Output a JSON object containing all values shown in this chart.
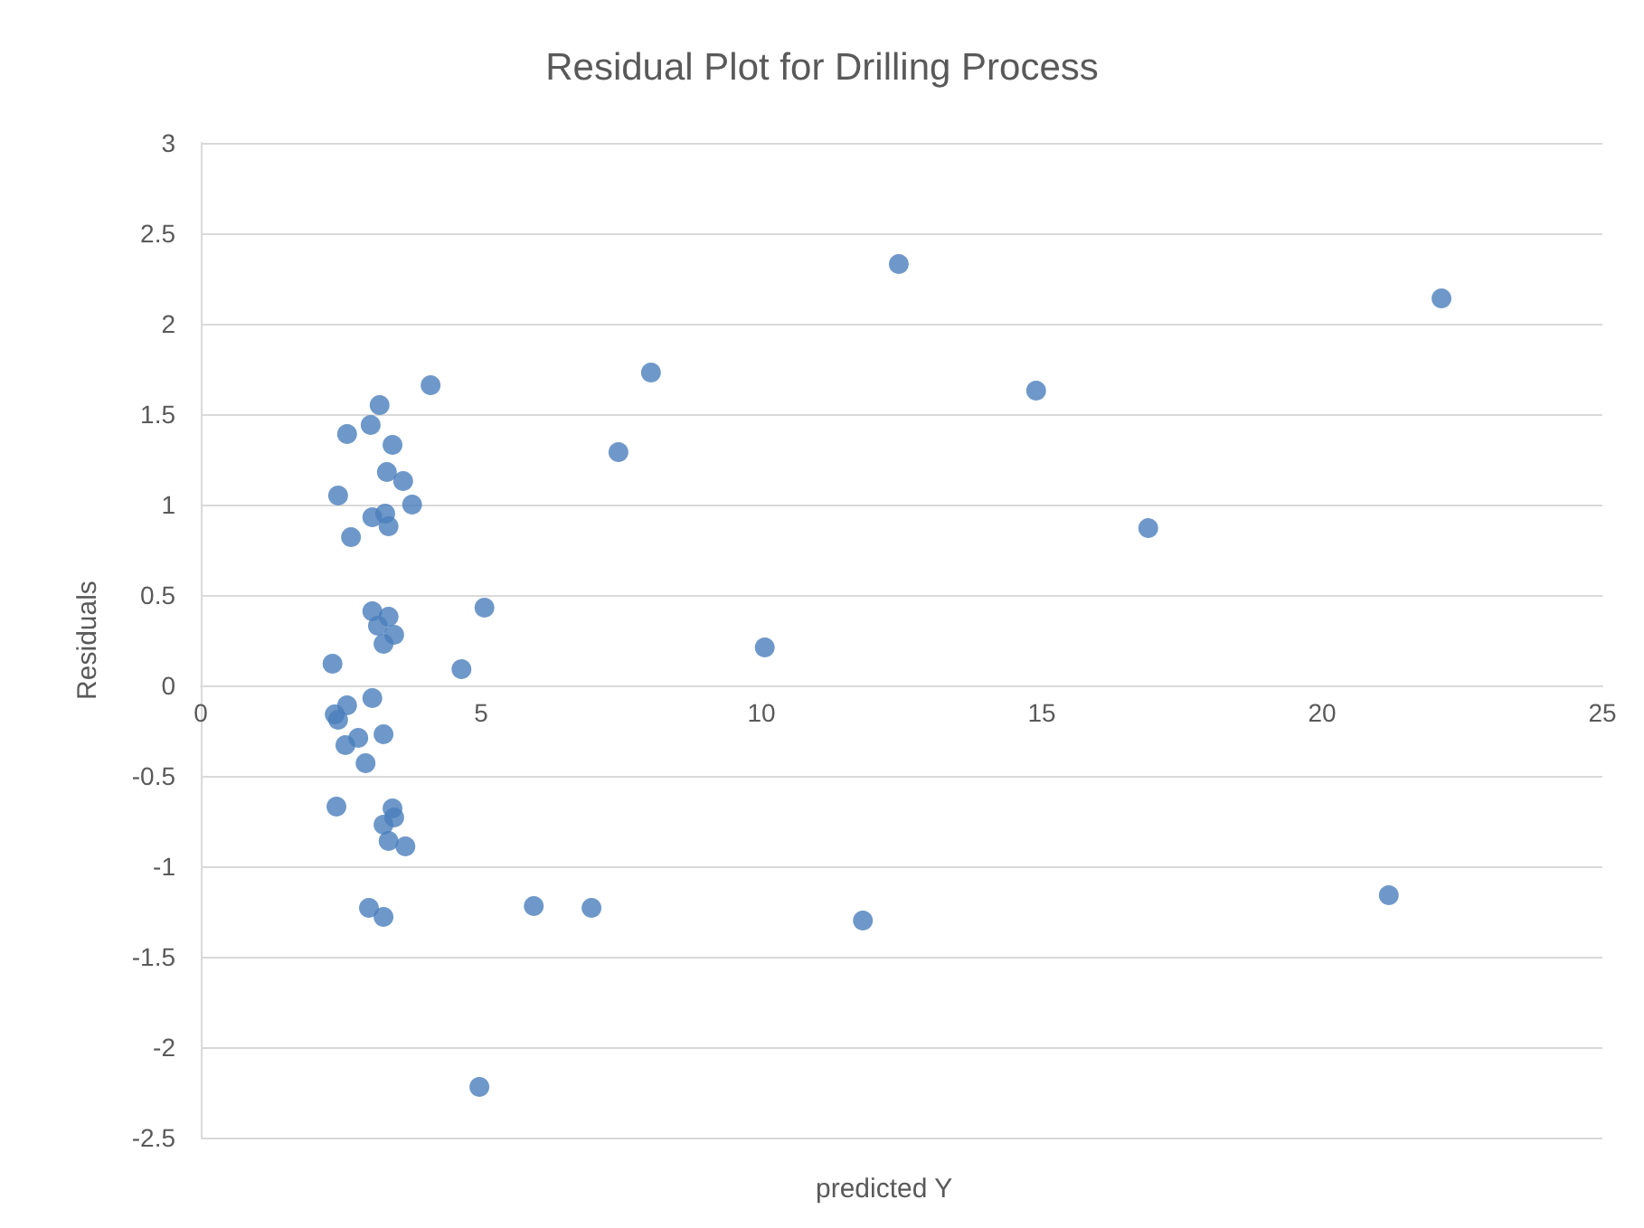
{
  "chart_data": {
    "type": "scatter",
    "title": "Residual Plot for Drilling Process",
    "xlabel": "predicted Y",
    "ylabel": "Residuals",
    "x": [
      12.45,
      22.13,
      8.03,
      14.9,
      4.1,
      3.19,
      3.03,
      2.61,
      3.42,
      7.45,
      3.32,
      3.61,
      2.45,
      3.77,
      3.29,
      3.06,
      3.35,
      2.68,
      16.9,
      3.06,
      5.06,
      3.35,
      3.16,
      3.45,
      3.26,
      10.06,
      2.35,
      4.65,
      3.06,
      2.61,
      2.39,
      2.45,
      2.81,
      3.26,
      2.58,
      2.94,
      2.42,
      3.42,
      3.45,
      3.26,
      3.35,
      3.65,
      3.0,
      3.26,
      5.94,
      6.97,
      11.81,
      21.19,
      4.97
    ],
    "series": [
      {
        "color": "#4a7ebb",
        "values": [
          2.33,
          2.14,
          1.73,
          1.63,
          1.66,
          1.55,
          1.44,
          1.39,
          1.33,
          1.29,
          1.18,
          1.13,
          1.05,
          1.0,
          0.95,
          0.93,
          0.88,
          0.82,
          0.87,
          0.41,
          0.43,
          0.38,
          0.33,
          0.28,
          0.23,
          0.21,
          0.12,
          0.09,
          -0.07,
          -0.11,
          -0.16,
          -0.19,
          -0.29,
          -0.27,
          -0.33,
          -0.43,
          -0.67,
          -0.68,
          -0.73,
          -0.77,
          -0.86,
          -0.89,
          -1.23,
          -1.28,
          -1.22,
          -1.23,
          -1.3,
          -1.16,
          -2.22
        ]
      }
    ],
    "xlim": [
      0,
      25
    ],
    "xticks": [
      0,
      5,
      10,
      15,
      20,
      25
    ],
    "ylim": [
      -2.5,
      3
    ],
    "yticks": [
      -2.5,
      -2,
      -1.5,
      -1,
      -0.5,
      0,
      0.5,
      1,
      1.5,
      2,
      2.5,
      3
    ],
    "grid": "y",
    "marker": "circle"
  }
}
